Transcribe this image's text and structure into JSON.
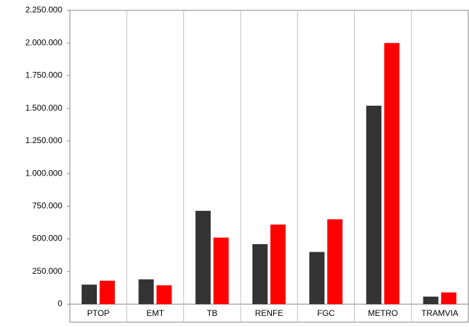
{
  "chart_data": {
    "type": "bar",
    "categories": [
      "PTOP",
      "EMT",
      "TB",
      "RENFE",
      "FGC",
      "METRO",
      "TRAMVIA"
    ],
    "series": [
      {
        "color": "#333333",
        "values": [
          150000,
          190000,
          715000,
          460000,
          400000,
          1520000,
          58000
        ]
      },
      {
        "color": "#ff0000",
        "values": [
          180000,
          145000,
          510000,
          610000,
          650000,
          2000000,
          90000
        ]
      }
    ],
    "ylim": [
      0,
      2250000
    ],
    "yticks": [
      0,
      {
        "value": 250000,
        "label": "250.000"
      },
      {
        "value": 500000,
        "label": "500.000"
      },
      {
        "value": 750000,
        "label": "750.000"
      },
      {
        "value": 1000000,
        "label": "1.000.000"
      },
      {
        "value": 1250000,
        "label": "1.250.000"
      },
      {
        "value": 1500000,
        "label": "1.500.000"
      },
      {
        "value": 1750000,
        "label": "1.750.000"
      },
      {
        "value": 2000000,
        "label": "2.000.000"
      },
      {
        "value": 2250000,
        "label": "2.250.000"
      }
    ],
    "grid": false
  }
}
